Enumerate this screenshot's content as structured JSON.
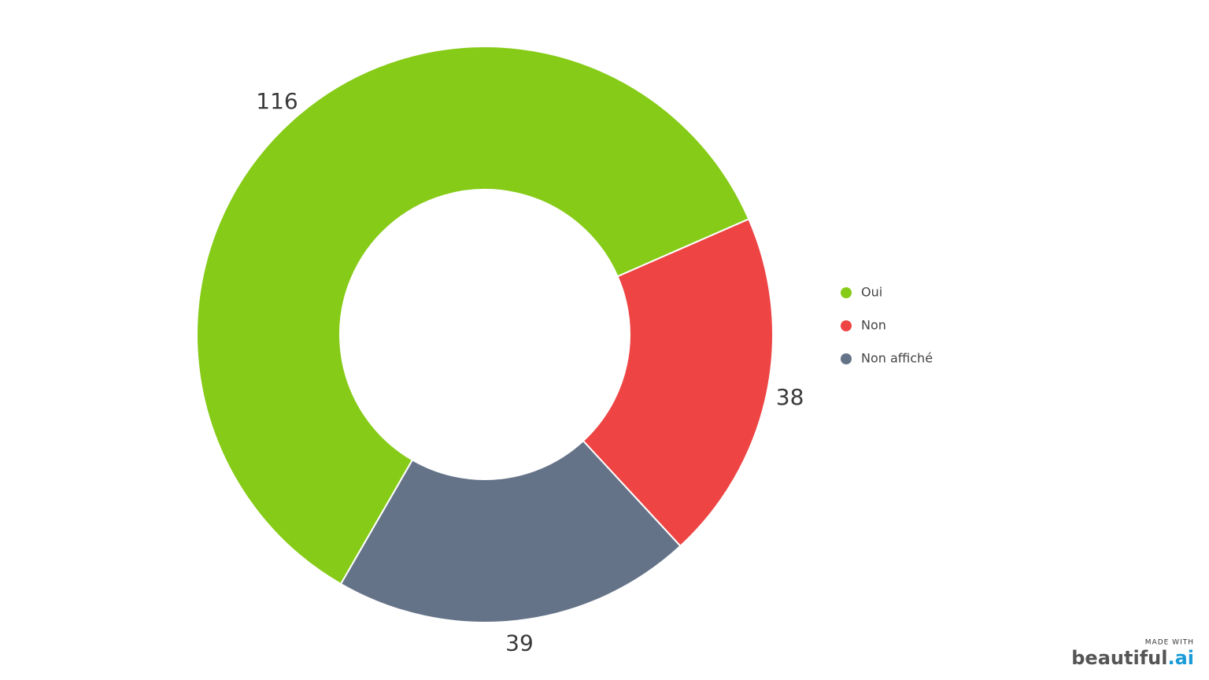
{
  "chart_data": {
    "type": "donut",
    "categories": [
      "Oui",
      "Non",
      "Non affiché"
    ],
    "values": [
      116,
      38,
      39
    ],
    "colors": [
      "#86cb17",
      "#ee4444",
      "#657389"
    ],
    "legend": "right"
  },
  "footer": {
    "made_with": "MADE WITH",
    "brand": "beautiful",
    "brand_suffix": ".ai"
  }
}
